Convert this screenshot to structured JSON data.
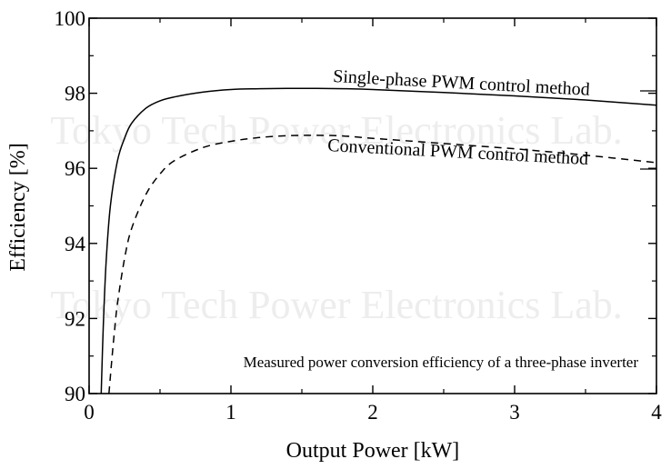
{
  "chart_data": {
    "type": "line",
    "xlabel": "Output Power [kW]",
    "ylabel": "Efficiency [%]",
    "xlim": [
      0,
      4
    ],
    "ylim": [
      90,
      100
    ],
    "x_ticks": [
      {
        "value": 0,
        "label": "0"
      },
      {
        "value": 1,
        "label": "1"
      },
      {
        "value": 2,
        "label": "2"
      },
      {
        "value": 3,
        "label": "3"
      },
      {
        "value": 4,
        "label": "4"
      }
    ],
    "y_ticks": [
      {
        "value": 90,
        "label": "90"
      },
      {
        "value": 92,
        "label": "92"
      },
      {
        "value": 94,
        "label": "94"
      },
      {
        "value": 96,
        "label": "96"
      },
      {
        "value": 98,
        "label": "98"
      },
      {
        "value": 100,
        "label": "100"
      }
    ],
    "grid": false,
    "series": [
      {
        "name": "Single-phase PWM control method",
        "style": "solid",
        "color": "#000000",
        "x": [
          0.085,
          0.1,
          0.12,
          0.15,
          0.2,
          0.25,
          0.3,
          0.4,
          0.5,
          0.6,
          0.8,
          1.0,
          1.2,
          1.5,
          1.8,
          2.0,
          2.5,
          3.0,
          3.5,
          4.0
        ],
        "y": [
          90.0,
          91.8,
          93.5,
          95.0,
          96.2,
          96.8,
          97.2,
          97.6,
          97.8,
          97.9,
          98.03,
          98.1,
          98.12,
          98.13,
          98.12,
          98.1,
          98.02,
          97.93,
          97.82,
          97.68
        ]
      },
      {
        "name": "Conventional PWM control method",
        "style": "dashed",
        "color": "#000000",
        "x": [
          0.14,
          0.16,
          0.18,
          0.2,
          0.25,
          0.3,
          0.4,
          0.5,
          0.6,
          0.8,
          1.0,
          1.2,
          1.4,
          1.6,
          1.8,
          2.0,
          2.5,
          3.0,
          3.5,
          4.0
        ],
        "y": [
          90.0,
          90.9,
          91.7,
          92.4,
          93.6,
          94.4,
          95.3,
          95.85,
          96.2,
          96.55,
          96.72,
          96.82,
          96.87,
          96.88,
          96.86,
          96.8,
          96.66,
          96.52,
          96.35,
          96.15
        ]
      }
    ],
    "annotations": {
      "caption": "Measured power conversion efficiency of a three-phase inverter",
      "watermark": "Tokyo Tech Power Electronics Lab."
    }
  }
}
